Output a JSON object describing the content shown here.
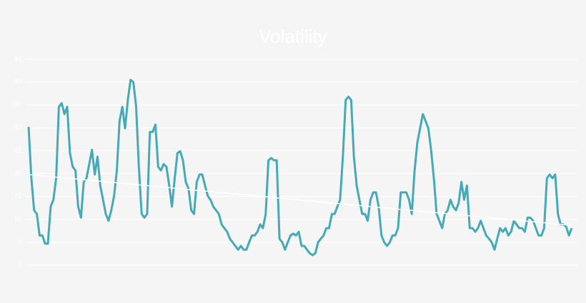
{
  "chart_data": {
    "type": "line",
    "title": "Volatility",
    "series": [
      {
        "name": null,
        "color": "#45aab8",
        "values": [
          30.2,
          19.0,
          12.0,
          11.2,
          6.5,
          6.5,
          4.7,
          4.7,
          12.8,
          14.3,
          19.0,
          34.6,
          35.4,
          33.0,
          34.6,
          24.5,
          21.5,
          20.7,
          12.8,
          10.4,
          18.2,
          19.0,
          22.1,
          25.2,
          19.8,
          23.7,
          17.4,
          14.3,
          11.2,
          9.7,
          12.0,
          15.1,
          20.7,
          31.5,
          34.6,
          29.9,
          36.1,
          40.5,
          40.0,
          34.6,
          21.5,
          11.2,
          10.4,
          11.2,
          29.1,
          29.1,
          30.7,
          21.5,
          20.7,
          22.1,
          21.5,
          17.4,
          12.8,
          19.0,
          24.5,
          24.9,
          22.9,
          18.2,
          16.7,
          12.0,
          11.2,
          18.2,
          19.8,
          19.8,
          17.4,
          15.1,
          14.3,
          12.8,
          12.0,
          11.2,
          8.9,
          8.1,
          7.3,
          5.8,
          5.0,
          4.2,
          3.4,
          4.2,
          3.4,
          3.4,
          5.0,
          6.5,
          6.5,
          7.3,
          8.9,
          8.1,
          11.2,
          22.9,
          23.4,
          22.9,
          22.9,
          5.8,
          5.0,
          3.4,
          5.0,
          6.5,
          6.9,
          6.5,
          7.3,
          4.2,
          4.2,
          3.4,
          2.6,
          2.2,
          2.6,
          5.0,
          5.8,
          6.5,
          8.1,
          8.1,
          11.2,
          11.2,
          12.8,
          14.3,
          23.7,
          36.1,
          36.8,
          36.1,
          23.7,
          17.4,
          14.3,
          11.2,
          11.2,
          9.7,
          14.3,
          15.9,
          15.9,
          12.8,
          6.5,
          5.0,
          4.2,
          5.0,
          6.5,
          6.5,
          8.1,
          15.9,
          15.9,
          15.9,
          14.3,
          11.2,
          20.6,
          26.8,
          29.9,
          33.0,
          31.5,
          29.9,
          25.2,
          19.0,
          11.2,
          9.7,
          8.1,
          11.2,
          12.0,
          14.3,
          12.8,
          12.0,
          13.6,
          18.2,
          14.3,
          17.4,
          8.1,
          8.1,
          7.3,
          8.1,
          9.7,
          8.1,
          6.5,
          5.8,
          5.0,
          3.4,
          5.8,
          8.1,
          7.3,
          8.1,
          6.5,
          7.3,
          9.7,
          8.9,
          8.1,
          8.1,
          7.3,
          10.4,
          10.4,
          9.7,
          8.1,
          6.5,
          6.5,
          8.1,
          19.0,
          19.8,
          19.0,
          19.8,
          11.2,
          8.9,
          8.9,
          8.4,
          6.5,
          8.1
        ]
      }
    ],
    "trend_values": [
      19.8,
      8.7
    ],
    "trend_color": "#ffffff",
    "ylim": [
      0,
      45
    ],
    "yticks": [
      0,
      5,
      10,
      15,
      20,
      25,
      30,
      35,
      40,
      45
    ],
    "grid": true
  }
}
